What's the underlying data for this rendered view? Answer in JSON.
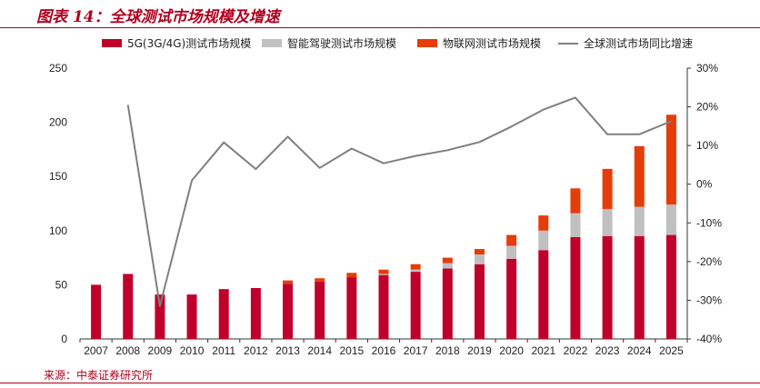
{
  "header": {
    "title": "图表 14：全球测试市场规模及增速"
  },
  "footer": {
    "source": "来源：中泰证券研究所"
  },
  "colors": {
    "accent": "#b0001e",
    "series_5g": "#c0002a",
    "series_auto": "#c0c0c0",
    "series_iot": "#e63c0a",
    "series_growth": "#7f7f7f"
  },
  "chart_data": {
    "type": "bar",
    "stacked": true,
    "title": "全球测试市场规模及增速",
    "categories": [
      "2007",
      "2008",
      "2009",
      "2010",
      "2011",
      "2012",
      "2013",
      "2014",
      "2015",
      "2016",
      "2017",
      "2018",
      "2019",
      "2020",
      "2021",
      "2022",
      "2023",
      "2024",
      "2025"
    ],
    "series": [
      {
        "name": "5G(3G/4G)测试市场规模",
        "type": "bar",
        "axis": "left",
        "color": "#c0002a",
        "values": [
          50,
          60,
          41,
          41,
          46,
          47,
          51,
          53,
          57,
          59,
          62,
          65,
          69,
          74,
          82,
          94,
          95,
          95,
          96
        ]
      },
      {
        "name": "智能驾驶测试市场规模",
        "type": "bar",
        "axis": "left",
        "color": "#c0c0c0",
        "values": [
          0,
          0,
          0,
          0,
          0,
          0,
          0,
          0,
          0,
          1,
          2,
          5,
          9,
          12,
          18,
          22,
          25,
          27,
          28
        ]
      },
      {
        "name": "物联网测试市场规模",
        "type": "bar",
        "axis": "left",
        "color": "#e63c0a",
        "values": [
          0,
          0,
          0,
          0,
          0,
          0,
          3,
          3,
          4,
          4,
          5,
          5,
          5,
          10,
          14,
          23,
          37,
          56,
          83
        ]
      },
      {
        "name": "全球测试市场同比增速",
        "type": "line",
        "axis": "right",
        "color": "#7f7f7f",
        "values": [
          null,
          20.5,
          -31.5,
          1.0,
          10.8,
          3.9,
          12.3,
          4.2,
          9.2,
          5.4,
          7.3,
          8.8,
          10.9,
          14.9,
          19.3,
          22.4,
          12.9,
          12.9,
          16.3
        ]
      }
    ],
    "yleft": {
      "min": 0,
      "max": 250,
      "ticks": [
        "0",
        "50",
        "100",
        "150",
        "200",
        "250"
      ]
    },
    "yright": {
      "min": -40,
      "max": 30,
      "ticks": [
        "-40%",
        "-30%",
        "-20%",
        "-10%",
        "0%",
        "10%",
        "20%",
        "30%"
      ]
    }
  }
}
